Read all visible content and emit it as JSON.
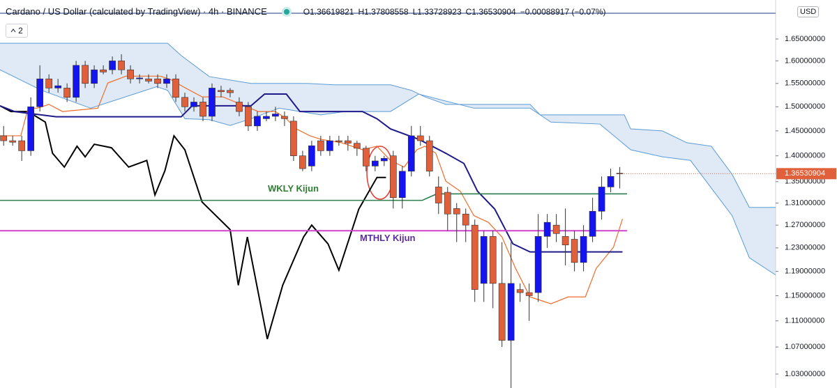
{
  "chart_data": {
    "type": "candlestick",
    "title": "Cardano / US Dollar (calculated by TradingView) · 4h · BINANCE",
    "ohlc_legend": [
      "O1.36619821",
      "H1.37808558",
      "L1.33728923",
      "C1.36530904",
      "−0.00088917 (−0.07%)"
    ],
    "indicator_count": "2",
    "currency": "USD",
    "last_price": 1.36530904,
    "log_scale": true,
    "xlim": [
      -0.4,
      85.2
    ],
    "ylim": [
      1.01,
      1.743
    ],
    "yticks": [
      {
        "value": 1.65,
        "label": "1.65000000"
      },
      {
        "value": 1.6,
        "label": "1.60000000"
      },
      {
        "value": 1.55,
        "label": "1.55000000"
      },
      {
        "value": 1.5,
        "label": "1.50000000"
      },
      {
        "value": 1.45,
        "label": "1.45000000"
      },
      {
        "value": 1.4,
        "label": "1.40000000"
      },
      {
        "value": 1.35,
        "label": "1.35000000"
      },
      {
        "value": 1.31,
        "label": "1.31000000"
      },
      {
        "value": 1.27,
        "label": "1.27000000"
      },
      {
        "value": 1.23,
        "label": "1.23000000"
      },
      {
        "value": 1.19,
        "label": "1.19000000"
      },
      {
        "value": 1.15,
        "label": "1.15000000"
      },
      {
        "value": 1.11,
        "label": "1.11000000"
      },
      {
        "value": 1.07,
        "label": "1.07000000"
      },
      {
        "value": 1.03,
        "label": "1.03000000"
      }
    ],
    "up_color": "#1414f0",
    "down_color": "#e0603c",
    "open": [
      1.44,
      1.43,
      1.43,
      1.41,
      1.5,
      1.56,
      1.54,
      1.54,
      1.52,
      1.59,
      1.55,
      1.58,
      1.58,
      1.6,
      1.58,
      1.56,
      1.56,
      1.56,
      1.55,
      1.56,
      1.52,
      1.5,
      1.51,
      1.48,
      1.535,
      1.535,
      1.51,
      1.5,
      1.46,
      1.475,
      1.48,
      1.48,
      1.47,
      1.4,
      1.38,
      1.43,
      1.41,
      1.43,
      1.43,
      1.425,
      1.415,
      1.38,
      1.39,
      1.4,
      1.32,
      1.37,
      1.44,
      1.43,
      1.34,
      1.33,
      1.3,
      1.29,
      1.27,
      1.17,
      1.25,
      1.17,
      1.08,
      1.16,
      1.155,
      1.155,
      1.25,
      1.27,
      1.25,
      1.245,
      1.205,
      1.25,
      1.295,
      1.34,
      1.36619821
    ],
    "high": [
      1.46,
      1.44,
      1.44,
      1.52,
      1.59,
      1.57,
      1.56,
      1.55,
      1.6,
      1.6,
      1.59,
      1.59,
      1.61,
      1.615,
      1.59,
      1.57,
      1.57,
      1.57,
      1.57,
      1.57,
      1.53,
      1.52,
      1.52,
      1.55,
      1.545,
      1.54,
      1.52,
      1.51,
      1.49,
      1.49,
      1.5,
      1.49,
      1.48,
      1.41,
      1.43,
      1.44,
      1.44,
      1.44,
      1.44,
      1.43,
      1.42,
      1.4,
      1.4,
      1.41,
      1.38,
      1.46,
      1.46,
      1.44,
      1.36,
      1.34,
      1.31,
      1.3,
      1.28,
      1.26,
      1.26,
      1.24,
      1.24,
      1.17,
      1.17,
      1.29,
      1.29,
      1.29,
      1.3,
      1.26,
      1.27,
      1.32,
      1.36,
      1.375,
      1.37808558
    ],
    "low": [
      1.42,
      1.42,
      1.39,
      1.4,
      1.49,
      1.53,
      1.53,
      1.51,
      1.51,
      1.54,
      1.54,
      1.57,
      1.57,
      1.57,
      1.55,
      1.55,
      1.55,
      1.54,
      1.54,
      1.51,
      1.49,
      1.49,
      1.47,
      1.47,
      1.52,
      1.52,
      1.48,
      1.45,
      1.45,
      1.47,
      1.47,
      1.46,
      1.39,
      1.37,
      1.37,
      1.4,
      1.4,
      1.42,
      1.41,
      1.4,
      1.37,
      1.37,
      1.38,
      1.3,
      1.3,
      1.36,
      1.42,
      1.36,
      1.29,
      1.26,
      1.24,
      1.24,
      1.14,
      1.14,
      1.13,
      1.07,
      1.01,
      1.14,
      1.11,
      1.14,
      1.23,
      1.24,
      1.2,
      1.19,
      1.19,
      1.24,
      1.28,
      1.33,
      1.33728923
    ],
    "close": [
      1.43,
      1.427,
      1.41,
      1.5,
      1.56,
      1.54,
      1.545,
      1.52,
      1.59,
      1.55,
      1.58,
      1.575,
      1.6,
      1.58,
      1.56,
      1.562,
      1.555,
      1.55,
      1.56,
      1.52,
      1.5,
      1.51,
      1.48,
      1.54,
      1.532,
      1.53,
      1.49,
      1.46,
      1.48,
      1.48,
      1.485,
      1.475,
      1.4,
      1.375,
      1.42,
      1.41,
      1.43,
      1.428,
      1.425,
      1.415,
      1.38,
      1.39,
      1.395,
      1.32,
      1.37,
      1.44,
      1.43,
      1.37,
      1.31,
      1.29,
      1.29,
      1.27,
      1.16,
      1.25,
      1.17,
      1.08,
      1.17,
      1.155,
      1.15,
      1.25,
      1.275,
      1.255,
      1.235,
      1.205,
      1.25,
      1.295,
      1.34,
      1.36,
      1.36530904
    ],
    "cloud": {
      "color": "#5b9bd5",
      "fill": "#dbe6f5",
      "upper": {
        "x": [
          -0.4,
          18.1,
          19.6,
          22.7,
          27.3,
          33.5,
          36.5,
          42.7,
          45,
          46.5,
          48.8,
          58.1,
          59.2,
          68.5,
          69.2,
          72.7,
          75.4,
          78.1,
          80.4,
          82.3,
          85.2
        ],
        "values": [
          1.64,
          1.64,
          1.612,
          1.565,
          1.55,
          1.55,
          1.547,
          1.547,
          1.535,
          1.521,
          1.505,
          1.505,
          1.483,
          1.483,
          1.454,
          1.45,
          1.426,
          1.419,
          1.364,
          1.302,
          1.302
        ]
      },
      "lower": {
        "x": [
          -0.4,
          4.2,
          9.6,
          16.9,
          18.1,
          20,
          22.7,
          25,
          27.3,
          30.4,
          35,
          37.7,
          42.7,
          45.8,
          51.9,
          58.1,
          60.4,
          65.8,
          69.2,
          72.7,
          75.8,
          78.1,
          80.4,
          82.3,
          85.2
        ],
        "values": [
          1.58,
          1.535,
          1.497,
          1.543,
          1.535,
          1.475,
          1.473,
          1.461,
          1.475,
          1.497,
          1.483,
          1.49,
          1.49,
          1.527,
          1.497,
          1.497,
          1.468,
          1.464,
          1.412,
          1.398,
          1.391,
          1.338,
          1.287,
          1.213,
          1.184
        ]
      }
    },
    "lines": [
      {
        "color": "#000000",
        "width": 2,
        "x": [
          -0.4,
          0.8,
          2.7,
          4.6,
          5.4,
          6.7,
          8.1,
          9,
          10,
          11.9,
          13.8,
          15.8,
          16.7,
          17.8,
          18.8,
          20,
          21.9,
          25,
          25.9,
          26.9,
          29.1,
          30.8,
          33.1,
          34,
          35.8,
          37,
          39.2,
          41.2,
          42.2
        ],
        "values": [
          1.502,
          1.49,
          1.49,
          1.468,
          1.405,
          1.378,
          1.419,
          1.398,
          1.423,
          1.416,
          1.378,
          1.391,
          1.325,
          1.371,
          1.44,
          1.412,
          1.312,
          1.262,
          1.167,
          1.249,
          1.082,
          1.167,
          1.249,
          1.27,
          1.237,
          1.192,
          1.299,
          1.358,
          1.358
        ]
      },
      {
        "color": "#ef6c2a",
        "width": 1.2,
        "x": [
          -0.4,
          1.9,
          2.7,
          3.7,
          5,
          6.5,
          10.4,
          11.5,
          13.5,
          17.3,
          18.5,
          19.8,
          21.9,
          24.2,
          26.2,
          28.1,
          30,
          31.2,
          32.3,
          33.8,
          35,
          37.3,
          39.6,
          41.2,
          42.7,
          44.2,
          45.6,
          46.5,
          47.7,
          48.8,
          50.4,
          51.9,
          53.5,
          55,
          56.5,
          58.1,
          60.4,
          62.3,
          64.2,
          65.4,
          67.3,
          68.3
        ],
        "values": [
          1.44,
          1.44,
          1.497,
          1.497,
          1.505,
          1.49,
          1.497,
          1.551,
          1.566,
          1.566,
          1.558,
          1.543,
          1.521,
          1.521,
          1.505,
          1.49,
          1.49,
          1.475,
          1.454,
          1.44,
          1.433,
          1.426,
          1.412,
          1.419,
          1.391,
          1.378,
          1.412,
          1.419,
          1.405,
          1.351,
          1.332,
          1.287,
          1.275,
          1.249,
          1.195,
          1.148,
          1.137,
          1.148,
          1.148,
          1.195,
          1.231,
          1.281
        ]
      },
      {
        "color": "#1e1a8a",
        "width": 2,
        "x": [
          -0.4,
          1.2,
          5.8,
          19.6,
          20.8,
          27.3,
          28.8,
          31.2,
          32.7,
          39.6,
          41.2,
          42.7,
          45.8,
          47.3,
          48.8,
          50.8,
          52.3,
          54.2,
          56.2,
          58.1,
          68.3
        ],
        "values": [
          1.502,
          1.49,
          1.479,
          1.479,
          1.502,
          1.502,
          1.527,
          1.527,
          1.49,
          1.49,
          1.475,
          1.454,
          1.433,
          1.419,
          1.405,
          1.385,
          1.332,
          1.299,
          1.237,
          1.223,
          1.223
        ]
      },
      {
        "color": "#2e7d4f",
        "width": 1.6,
        "x": [
          -0.4,
          46.2,
          47.8,
          68.8
        ],
        "values": [
          1.315,
          1.315,
          1.327,
          1.327
        ]
      },
      {
        "color": "#cc44cc",
        "width": 2,
        "x": [
          -0.4,
          68.8
        ],
        "values": [
          1.26,
          1.26
        ]
      }
    ],
    "annotations": [
      {
        "text": "WKLY Kijun",
        "color": "#2e7d32"
      },
      {
        "text": "MTHLY Kijun",
        "color": "#5b2ca0"
      }
    ]
  }
}
